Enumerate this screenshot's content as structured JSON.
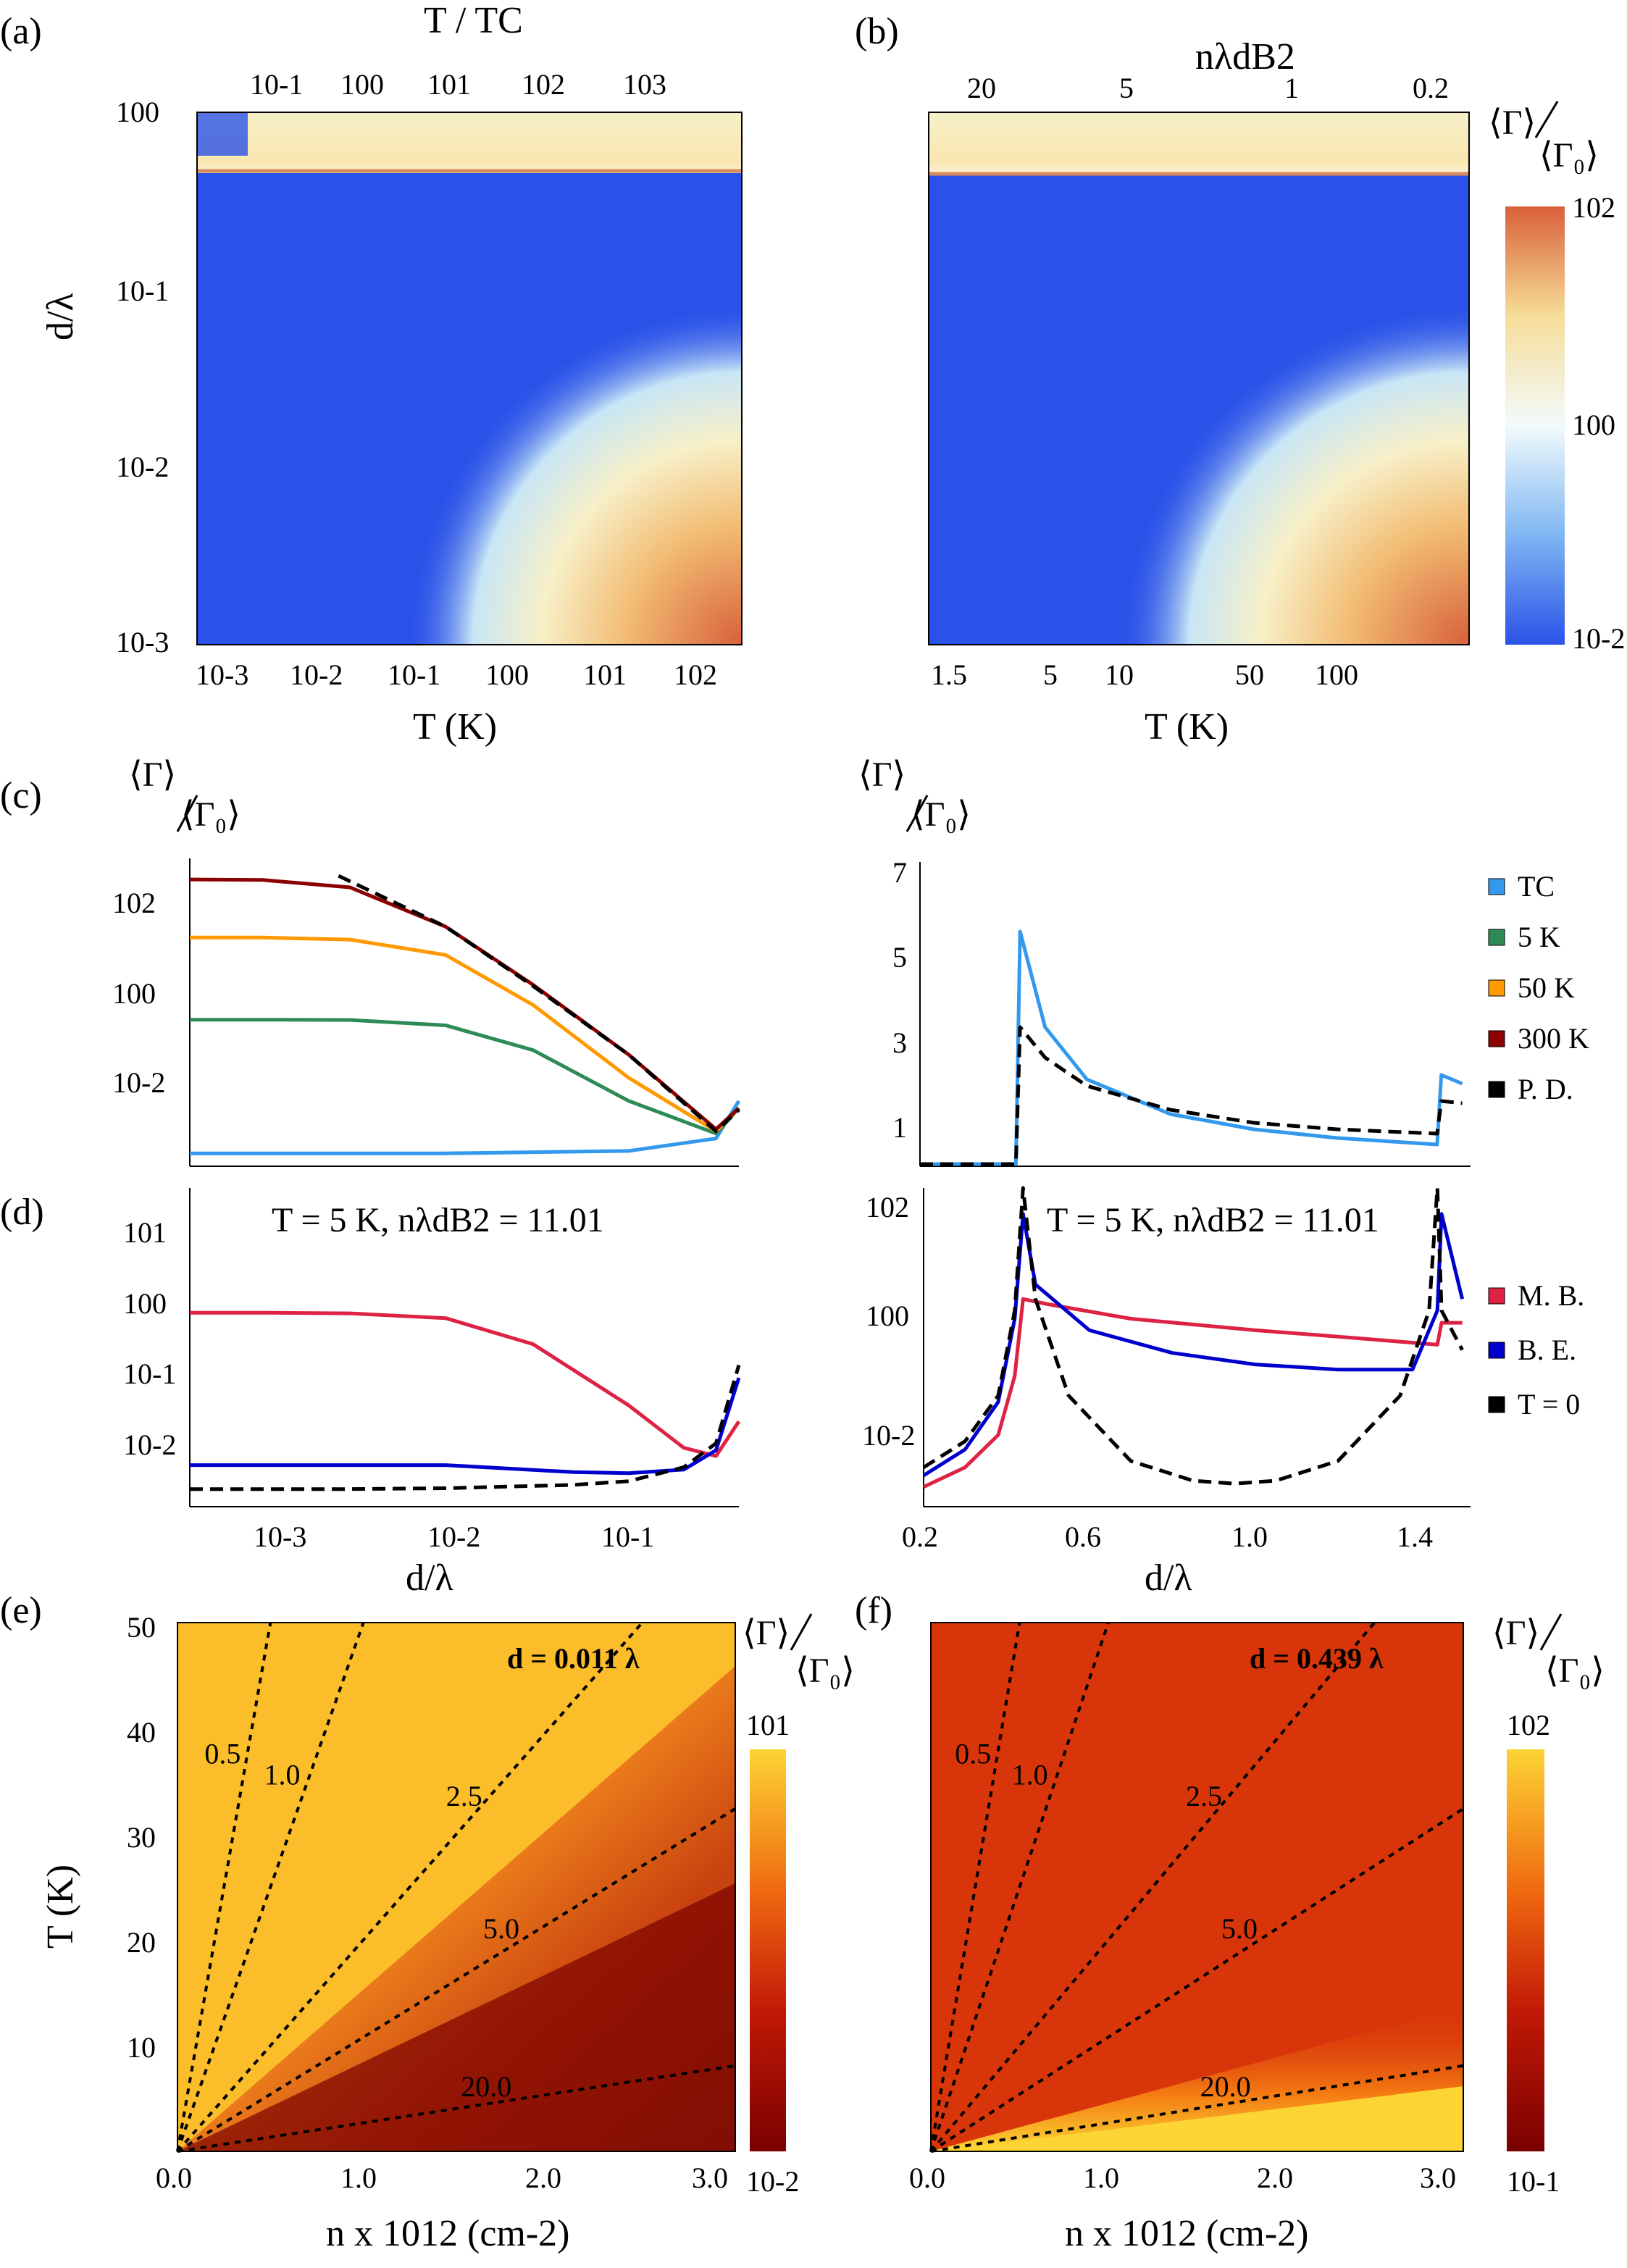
{
  "panel_labels": {
    "a": "(a)",
    "b": "(b)",
    "c": "(c)",
    "d": "(d)",
    "e": "(e)",
    "f": "(f)"
  },
  "gamma_label": {
    "top": "⟨Γ⟩",
    "bottom": "⟨Γ₀⟩"
  },
  "chart_data": [
    {
      "id": "a",
      "type": "heatmap",
      "title_top": "T / TC",
      "xlabel": "T (K)",
      "ylabel": "d/λ",
      "xlim": [
        0.0005,
        200
      ],
      "ylim": [
        0.001,
        1
      ],
      "xticks": [
        "10-3",
        "10-2",
        "10-1",
        "100",
        "101",
        "102"
      ],
      "top_ticks": [
        "10-1",
        "100",
        "101",
        "102",
        "103"
      ],
      "yticks": [
        "10-3",
        "10-2",
        "10-1",
        "100"
      ]
    },
    {
      "id": "b",
      "type": "heatmap",
      "title_top": "nλdB2",
      "xlabel": "T (K)",
      "xlim": [
        1.3,
        300
      ],
      "xticks": [
        "1.5",
        "5",
        "10",
        "50",
        "100"
      ],
      "top_ticks": [
        "20",
        "5",
        "1",
        "0.2"
      ],
      "colorbar": {
        "label": "⟨Γ⟩/⟨Γ₀⟩",
        "ticks": [
          "102",
          "100",
          "10-2"
        ]
      }
    },
    {
      "id": "c_left",
      "type": "line",
      "xlabel": "",
      "ylabel": "⟨Γ⟩/⟨Γ₀⟩",
      "xlim": [
        0.0004,
        0.4
      ],
      "ylim": [
        0.003,
        600
      ],
      "yscale": "log",
      "xscale": "log",
      "yticks": [
        "102",
        "100",
        "10-2"
      ],
      "series": [
        {
          "name": "TC",
          "color": "#3399ee",
          "x": [
            0.0004,
            0.01,
            0.1,
            0.3,
            0.4
          ],
          "y": [
            0.005,
            0.005,
            0.0055,
            0.009,
            0.04
          ]
        },
        {
          "name": "5 K",
          "color": "#2e8b57",
          "x": [
            0.0004,
            0.001,
            0.003,
            0.01,
            0.03,
            0.1,
            0.3,
            0.4
          ],
          "y": [
            1,
            1,
            0.99,
            0.8,
            0.3,
            0.04,
            0.011,
            0.03
          ]
        },
        {
          "name": "50 K",
          "color": "#ff9900",
          "x": [
            0.0004,
            0.001,
            0.003,
            0.01,
            0.03,
            0.1,
            0.3,
            0.4
          ],
          "y": [
            26,
            26,
            24,
            13,
            1.8,
            0.1,
            0.012,
            0.03
          ]
        },
        {
          "name": "300 K",
          "color": "#8b0000",
          "x": [
            0.0004,
            0.001,
            0.003,
            0.01,
            0.03,
            0.1,
            0.3,
            0.4
          ],
          "y": [
            260,
            255,
            190,
            40,
            4,
            0.25,
            0.013,
            0.03
          ]
        },
        {
          "name": "P. D.",
          "color": "#000000",
          "dashed": true,
          "x": [
            0.0026,
            0.01,
            0.03,
            0.1,
            0.3,
            0.4
          ],
          "y": [
            300,
            40,
            3.8,
            0.25,
            0.012,
            0.028
          ]
        }
      ]
    },
    {
      "id": "c_right",
      "type": "line",
      "ylabel": "⟨Γ⟩/⟨Γ₀⟩",
      "xlim": [
        0.2,
        1.52
      ],
      "ylim": [
        0,
        7
      ],
      "yticks": [
        "7",
        "5",
        "3",
        "1"
      ],
      "legend": [
        "TC",
        "5 K",
        "50 K",
        "300 K",
        "P. D."
      ],
      "series": [
        {
          "name": "TC",
          "color": "#3399ee",
          "x": [
            0.2,
            0.43,
            0.44,
            0.5,
            0.6,
            0.8,
            1.0,
            1.2,
            1.44,
            1.45,
            1.5
          ],
          "y": [
            0.05,
            0.05,
            5.4,
            3.2,
            2.0,
            1.2,
            0.85,
            0.65,
            0.5,
            2.1,
            1.9
          ]
        },
        {
          "name": "P. D.",
          "color": "#000000",
          "dashed": true,
          "x": [
            0.2,
            0.43,
            0.44,
            0.5,
            0.6,
            0.8,
            1.0,
            1.2,
            1.44,
            1.45,
            1.5
          ],
          "y": [
            0.05,
            0.05,
            3.2,
            2.5,
            1.85,
            1.3,
            1.0,
            0.85,
            0.75,
            1.5,
            1.45
          ]
        }
      ]
    },
    {
      "id": "d_left",
      "type": "line",
      "title": "T = 5 K, nλdB2 = 11.01",
      "xlabel": "d/λ",
      "xlim": [
        0.0004,
        0.4
      ],
      "ylim": [
        0.002,
        50
      ],
      "xscale": "log",
      "yscale": "log",
      "xticks": [
        "10-3",
        "10-2",
        "10-1"
      ],
      "yticks": [
        "101",
        "100",
        "10-1",
        "10-2"
      ],
      "series": [
        {
          "name": "M. B.",
          "color": "#dd2244",
          "x": [
            0.0004,
            0.001,
            0.003,
            0.01,
            0.03,
            0.1,
            0.2,
            0.3,
            0.4
          ],
          "y": [
            0.95,
            0.95,
            0.93,
            0.8,
            0.35,
            0.05,
            0.013,
            0.01,
            0.03
          ]
        },
        {
          "name": "B. E.",
          "color": "#0000cc",
          "x": [
            0.0004,
            0.003,
            0.01,
            0.05,
            0.1,
            0.2,
            0.3,
            0.4
          ],
          "y": [
            0.0075,
            0.0075,
            0.0075,
            0.006,
            0.0058,
            0.0065,
            0.012,
            0.12
          ]
        },
        {
          "name": "T = 0",
          "color": "#000000",
          "dashed": true,
          "x": [
            0.0004,
            0.003,
            0.01,
            0.05,
            0.1,
            0.2,
            0.3,
            0.4
          ],
          "y": [
            0.0035,
            0.0035,
            0.0036,
            0.004,
            0.0045,
            0.007,
            0.015,
            0.18
          ]
        }
      ]
    },
    {
      "id": "d_right",
      "type": "line",
      "title": "T = 5 K, nλdB2 = 11.01",
      "xlabel": "d/λ",
      "xlim": [
        0.2,
        1.52
      ],
      "ylim": [
        0.002,
        150
      ],
      "yscale": "log",
      "xticks": [
        "0.2",
        "0.6",
        "1.0",
        "1.4"
      ],
      "yticks": [
        "102",
        "100",
        "10-2"
      ],
      "legend": [
        "M. B.",
        "B. E.",
        "T = 0"
      ],
      "series": [
        {
          "name": "M. B.",
          "color": "#dd2244",
          "x": [
            0.2,
            0.3,
            0.38,
            0.42,
            0.44,
            0.5,
            0.7,
            1.0,
            1.2,
            1.44,
            1.45,
            1.5
          ],
          "y": [
            0.004,
            0.008,
            0.025,
            0.2,
            3,
            2.5,
            1.5,
            1.0,
            0.8,
            0.6,
            1.3,
            1.3
          ]
        },
        {
          "name": "B. E.",
          "color": "#0000cc",
          "x": [
            0.2,
            0.3,
            0.38,
            0.42,
            0.44,
            0.47,
            0.6,
            0.8,
            1.0,
            1.2,
            1.38,
            1.44,
            1.45,
            1.5
          ],
          "y": [
            0.006,
            0.015,
            0.08,
            1.5,
            60,
            5,
            1.0,
            0.45,
            0.3,
            0.25,
            0.25,
            2,
            60,
            3
          ]
        },
        {
          "name": "T = 0",
          "color": "#000000",
          "dashed": true,
          "x": [
            0.2,
            0.3,
            0.38,
            0.42,
            0.44,
            0.47,
            0.55,
            0.7,
            0.85,
            0.95,
            1.05,
            1.2,
            1.35,
            1.42,
            1.44,
            1.45,
            1.5
          ],
          "y": [
            0.008,
            0.02,
            0.1,
            2,
            150,
            3,
            0.1,
            0.01,
            0.005,
            0.0045,
            0.005,
            0.01,
            0.1,
            2,
            150,
            2,
            0.5
          ]
        }
      ]
    },
    {
      "id": "e",
      "type": "heatmap",
      "xlabel": "n x 1012 (cm-2)",
      "ylabel": "T (K)",
      "xlim": [
        0,
        3
      ],
      "ylim": [
        0,
        50
      ],
      "xticks": [
        "0.0",
        "1.0",
        "2.0",
        "3.0"
      ],
      "yticks": [
        "10",
        "20",
        "30",
        "40",
        "50"
      ],
      "annotation": "d = 0.011 λ",
      "contours": [
        {
          "label": "0.5",
          "slope": 100
        },
        {
          "label": "1.0",
          "slope": 50
        },
        {
          "label": "2.5",
          "slope": 20
        },
        {
          "label": "5.0",
          "slope": 10.8
        },
        {
          "label": "20.0",
          "slope": 2.7
        }
      ],
      "colorbar": {
        "label": "⟨Γ⟩/⟨Γ₀⟩",
        "ticks": [
          "101",
          "10-2"
        ]
      }
    },
    {
      "id": "f",
      "type": "heatmap",
      "xlabel": "n x 1012 (cm-2)",
      "xlim": [
        0,
        3
      ],
      "ylim": [
        0,
        50
      ],
      "xticks": [
        "0.0",
        "1.0",
        "2.0",
        "3.0"
      ],
      "annotation": "d = 0.439 λ",
      "contours": [
        {
          "label": "0.5",
          "slope": 100
        },
        {
          "label": "1.0",
          "slope": 50
        },
        {
          "label": "2.5",
          "slope": 20
        },
        {
          "label": "5.0",
          "slope": 10.8
        },
        {
          "label": "20.0",
          "slope": 2.7
        }
      ],
      "colorbar": {
        "label": "⟨Γ⟩/⟨Γ₀⟩",
        "ticks": [
          "102",
          "10-1"
        ]
      }
    }
  ]
}
